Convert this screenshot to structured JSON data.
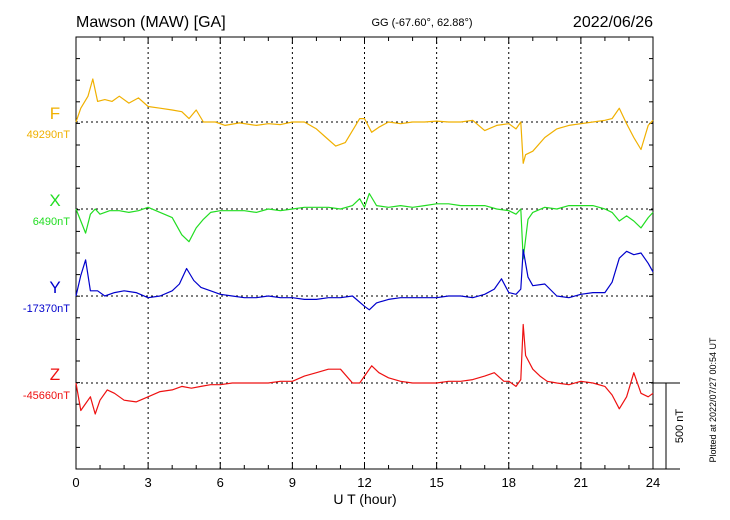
{
  "header": {
    "station": "Mawson (MAW)  [GA]",
    "coords": "GG (-67.60°,  62.88°)",
    "date": "2022/06/26"
  },
  "footer": {
    "plotted": "Plotted at 2022/07/27 00:54 UT"
  },
  "chart_data": {
    "type": "line",
    "xlabel": "U T (hour)",
    "xlim": [
      0,
      24
    ],
    "xticks": [
      0,
      3,
      6,
      9,
      12,
      15,
      18,
      21,
      24
    ],
    "scale_bar": {
      "label": "500 nT",
      "value_nT": 500
    },
    "series": [
      {
        "name": "F",
        "baseline_label": "49290nT",
        "baseline_nT": 49290,
        "color": "#f0b000",
        "points": [
          [
            0,
            49290
          ],
          [
            0.2,
            49370
          ],
          [
            0.5,
            49440
          ],
          [
            0.7,
            49540
          ],
          [
            0.9,
            49410
          ],
          [
            1.2,
            49420
          ],
          [
            1.5,
            49410
          ],
          [
            1.8,
            49440
          ],
          [
            2.2,
            49400
          ],
          [
            2.6,
            49430
          ],
          [
            3.0,
            49380
          ],
          [
            3.5,
            49370
          ],
          [
            4.0,
            49360
          ],
          [
            4.4,
            49350
          ],
          [
            4.7,
            49310
          ],
          [
            5.0,
            49360
          ],
          [
            5.3,
            49290
          ],
          [
            5.8,
            49290
          ],
          [
            6.2,
            49270
          ],
          [
            6.8,
            49285
          ],
          [
            7.5,
            49270
          ],
          [
            8.0,
            49280
          ],
          [
            8.5,
            49275
          ],
          [
            9.0,
            49290
          ],
          [
            9.5,
            49290
          ],
          [
            10.0,
            49250
          ],
          [
            10.4,
            49200
          ],
          [
            10.8,
            49150
          ],
          [
            11.2,
            49170
          ],
          [
            11.5,
            49240
          ],
          [
            11.8,
            49310
          ],
          [
            12.0,
            49310
          ],
          [
            12.3,
            49230
          ],
          [
            12.6,
            49260
          ],
          [
            13.0,
            49290
          ],
          [
            13.5,
            49280
          ],
          [
            14.0,
            49290
          ],
          [
            14.5,
            49290
          ],
          [
            15.0,
            49295
          ],
          [
            15.5,
            49290
          ],
          [
            16.0,
            49290
          ],
          [
            16.5,
            49300
          ],
          [
            17.0,
            49240
          ],
          [
            17.5,
            49270
          ],
          [
            18.0,
            49280
          ],
          [
            18.3,
            49250
          ],
          [
            18.5,
            49290
          ],
          [
            18.6,
            49050
          ],
          [
            18.7,
            49100
          ],
          [
            19.0,
            49120
          ],
          [
            19.5,
            49200
          ],
          [
            20.0,
            49250
          ],
          [
            20.5,
            49270
          ],
          [
            21.0,
            49280
          ],
          [
            21.5,
            49290
          ],
          [
            22.0,
            49300
          ],
          [
            22.3,
            49310
          ],
          [
            22.6,
            49370
          ],
          [
            22.9,
            49280
          ],
          [
            23.2,
            49200
          ],
          [
            23.5,
            49130
          ],
          [
            23.8,
            49270
          ],
          [
            24.0,
            49300
          ]
        ]
      },
      {
        "name": "X",
        "baseline_label": "6490nT",
        "baseline_nT": 6490,
        "color": "#22dd22",
        "points": [
          [
            0,
            6490
          ],
          [
            0.2,
            6420
          ],
          [
            0.4,
            6350
          ],
          [
            0.6,
            6460
          ],
          [
            0.8,
            6490
          ],
          [
            1.0,
            6460
          ],
          [
            1.4,
            6480
          ],
          [
            1.8,
            6480
          ],
          [
            2.2,
            6470
          ],
          [
            2.6,
            6480
          ],
          [
            3.0,
            6500
          ],
          [
            3.5,
            6470
          ],
          [
            4.0,
            6440
          ],
          [
            4.4,
            6340
          ],
          [
            4.7,
            6300
          ],
          [
            5.0,
            6380
          ],
          [
            5.3,
            6430
          ],
          [
            5.6,
            6470
          ],
          [
            6.0,
            6480
          ],
          [
            6.5,
            6480
          ],
          [
            7.0,
            6480
          ],
          [
            7.5,
            6470
          ],
          [
            8.0,
            6490
          ],
          [
            8.5,
            6480
          ],
          [
            9.0,
            6490
          ],
          [
            9.5,
            6500
          ],
          [
            10.0,
            6500
          ],
          [
            10.5,
            6500
          ],
          [
            11.0,
            6490
          ],
          [
            11.5,
            6510
          ],
          [
            11.8,
            6550
          ],
          [
            12.0,
            6500
          ],
          [
            12.2,
            6580
          ],
          [
            12.5,
            6510
          ],
          [
            13.0,
            6500
          ],
          [
            13.5,
            6510
          ],
          [
            14.0,
            6500
          ],
          [
            14.5,
            6510
          ],
          [
            15.0,
            6520
          ],
          [
            15.5,
            6520
          ],
          [
            16.0,
            6510
          ],
          [
            16.5,
            6510
          ],
          [
            17.0,
            6510
          ],
          [
            17.5,
            6490
          ],
          [
            18.0,
            6480
          ],
          [
            18.3,
            6460
          ],
          [
            18.5,
            6490
          ],
          [
            18.6,
            6200
          ],
          [
            18.8,
            6430
          ],
          [
            19.0,
            6470
          ],
          [
            19.5,
            6500
          ],
          [
            20.0,
            6490
          ],
          [
            20.5,
            6510
          ],
          [
            21.0,
            6510
          ],
          [
            21.5,
            6510
          ],
          [
            22.0,
            6490
          ],
          [
            22.3,
            6470
          ],
          [
            22.6,
            6420
          ],
          [
            22.9,
            6450
          ],
          [
            23.2,
            6420
          ],
          [
            23.5,
            6380
          ],
          [
            23.8,
            6440
          ],
          [
            24.0,
            6470
          ]
        ]
      },
      {
        "name": "Y",
        "baseline_label": "-17370nT",
        "baseline_nT": -17370,
        "color": "#0000cc",
        "points": [
          [
            0,
            -17370
          ],
          [
            0.2,
            -17250
          ],
          [
            0.4,
            -17160
          ],
          [
            0.6,
            -17340
          ],
          [
            0.9,
            -17340
          ],
          [
            1.2,
            -17370
          ],
          [
            1.6,
            -17350
          ],
          [
            2.0,
            -17340
          ],
          [
            2.5,
            -17350
          ],
          [
            3.0,
            -17380
          ],
          [
            3.5,
            -17370
          ],
          [
            4.0,
            -17340
          ],
          [
            4.3,
            -17300
          ],
          [
            4.6,
            -17210
          ],
          [
            4.9,
            -17280
          ],
          [
            5.2,
            -17320
          ],
          [
            5.6,
            -17340
          ],
          [
            6.0,
            -17360
          ],
          [
            6.5,
            -17370
          ],
          [
            7.0,
            -17380
          ],
          [
            7.5,
            -17380
          ],
          [
            8.0,
            -17370
          ],
          [
            8.5,
            -17380
          ],
          [
            9.0,
            -17380
          ],
          [
            9.5,
            -17390
          ],
          [
            10.0,
            -17390
          ],
          [
            10.5,
            -17380
          ],
          [
            11.0,
            -17380
          ],
          [
            11.5,
            -17370
          ],
          [
            12.0,
            -17430
          ],
          [
            12.2,
            -17450
          ],
          [
            12.5,
            -17410
          ],
          [
            13.0,
            -17390
          ],
          [
            13.5,
            -17380
          ],
          [
            14.0,
            -17380
          ],
          [
            14.5,
            -17380
          ],
          [
            15.0,
            -17380
          ],
          [
            15.5,
            -17370
          ],
          [
            16.0,
            -17370
          ],
          [
            16.5,
            -17380
          ],
          [
            17.0,
            -17360
          ],
          [
            17.4,
            -17330
          ],
          [
            17.7,
            -17270
          ],
          [
            18.0,
            -17350
          ],
          [
            18.3,
            -17360
          ],
          [
            18.5,
            -17330
          ],
          [
            18.6,
            -17100
          ],
          [
            18.8,
            -17260
          ],
          [
            19.0,
            -17310
          ],
          [
            19.5,
            -17300
          ],
          [
            20.0,
            -17370
          ],
          [
            20.5,
            -17380
          ],
          [
            21.0,
            -17360
          ],
          [
            21.5,
            -17350
          ],
          [
            22.0,
            -17350
          ],
          [
            22.3,
            -17290
          ],
          [
            22.6,
            -17150
          ],
          [
            22.9,
            -17110
          ],
          [
            23.2,
            -17130
          ],
          [
            23.5,
            -17120
          ],
          [
            23.8,
            -17180
          ],
          [
            24.0,
            -17230
          ]
        ]
      },
      {
        "name": "Z",
        "baseline_label": "-45660nT",
        "baseline_nT": -45660,
        "color": "#ee1111",
        "points": [
          [
            0,
            -45660
          ],
          [
            0.2,
            -45820
          ],
          [
            0.4,
            -45780
          ],
          [
            0.6,
            -45740
          ],
          [
            0.8,
            -45840
          ],
          [
            1.0,
            -45760
          ],
          [
            1.3,
            -45700
          ],
          [
            1.6,
            -45720
          ],
          [
            2.0,
            -45760
          ],
          [
            2.5,
            -45770
          ],
          [
            3.0,
            -45740
          ],
          [
            3.5,
            -45710
          ],
          [
            4.0,
            -45700
          ],
          [
            4.4,
            -45680
          ],
          [
            4.8,
            -45690
          ],
          [
            5.2,
            -45680
          ],
          [
            5.6,
            -45670
          ],
          [
            6.0,
            -45670
          ],
          [
            6.5,
            -45660
          ],
          [
            7.0,
            -45660
          ],
          [
            7.5,
            -45660
          ],
          [
            8.0,
            -45660
          ],
          [
            8.5,
            -45650
          ],
          [
            9.0,
            -45650
          ],
          [
            9.5,
            -45620
          ],
          [
            10.0,
            -45600
          ],
          [
            10.5,
            -45580
          ],
          [
            11.0,
            -45580
          ],
          [
            11.5,
            -45660
          ],
          [
            11.8,
            -45660
          ],
          [
            12.0,
            -45620
          ],
          [
            12.3,
            -45560
          ],
          [
            12.6,
            -45600
          ],
          [
            13.0,
            -45630
          ],
          [
            13.5,
            -45650
          ],
          [
            14.0,
            -45660
          ],
          [
            14.5,
            -45660
          ],
          [
            15.0,
            -45660
          ],
          [
            15.5,
            -45650
          ],
          [
            16.0,
            -45650
          ],
          [
            16.5,
            -45640
          ],
          [
            17.0,
            -45620
          ],
          [
            17.4,
            -45600
          ],
          [
            17.8,
            -45650
          ],
          [
            18.0,
            -45650
          ],
          [
            18.3,
            -45680
          ],
          [
            18.5,
            -45640
          ],
          [
            18.6,
            -45320
          ],
          [
            18.7,
            -45500
          ],
          [
            19.0,
            -45580
          ],
          [
            19.3,
            -45620
          ],
          [
            19.6,
            -45650
          ],
          [
            20.0,
            -45660
          ],
          [
            20.5,
            -45670
          ],
          [
            21.0,
            -45650
          ],
          [
            21.5,
            -45660
          ],
          [
            22.0,
            -45680
          ],
          [
            22.3,
            -45730
          ],
          [
            22.6,
            -45810
          ],
          [
            22.9,
            -45740
          ],
          [
            23.2,
            -45600
          ],
          [
            23.5,
            -45720
          ],
          [
            23.8,
            -45740
          ],
          [
            24.0,
            -45720
          ]
        ]
      }
    ]
  }
}
